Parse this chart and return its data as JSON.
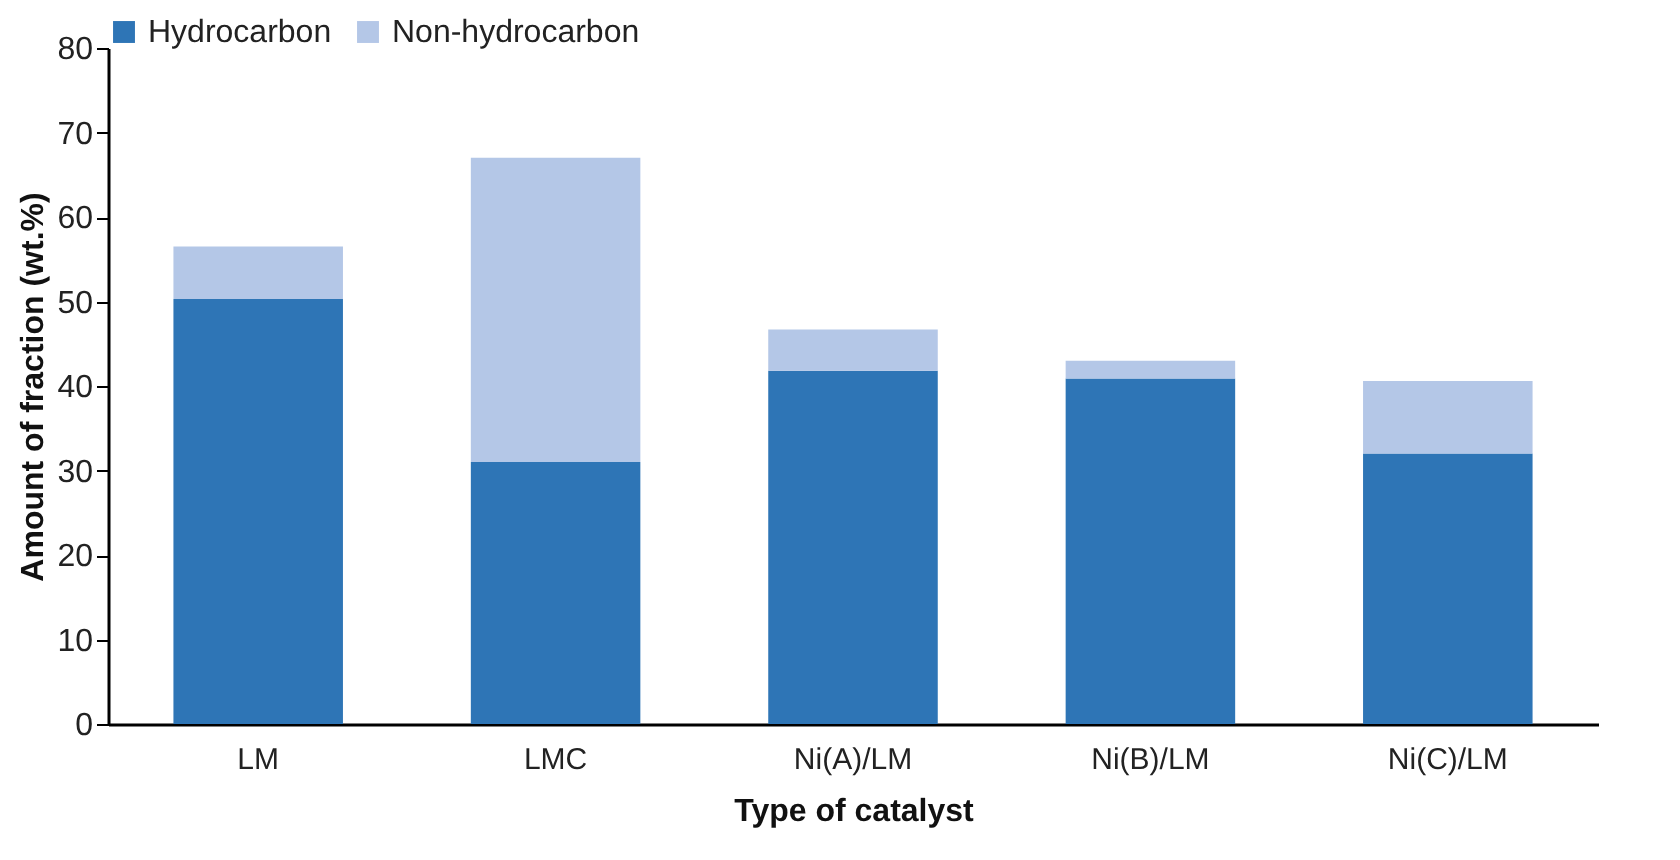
{
  "chart_data": {
    "type": "bar",
    "stacked": true,
    "xlabel": "Type of catalyst",
    "ylabel": "Amount  of fraction (wt.%)",
    "categories": [
      "LM",
      "LMC",
      "Ni(A)/LM",
      "Ni(B)/LM",
      "Ni(C)/LM"
    ],
    "series": [
      {
        "name": "Hydrocarbon",
        "color": "#2e75b6",
        "values": [
          50.3,
          31.0,
          41.8,
          40.9,
          32.0
        ]
      },
      {
        "name": "Non-hydrocarbon",
        "color": "#b4c7e7",
        "values": [
          6.2,
          36.0,
          4.9,
          2.1,
          8.6
        ]
      }
    ],
    "ylim": [
      0,
      80
    ],
    "yticks": [
      0,
      10,
      20,
      30,
      40,
      50,
      60,
      70,
      80
    ],
    "grid": false,
    "legend": "top"
  }
}
